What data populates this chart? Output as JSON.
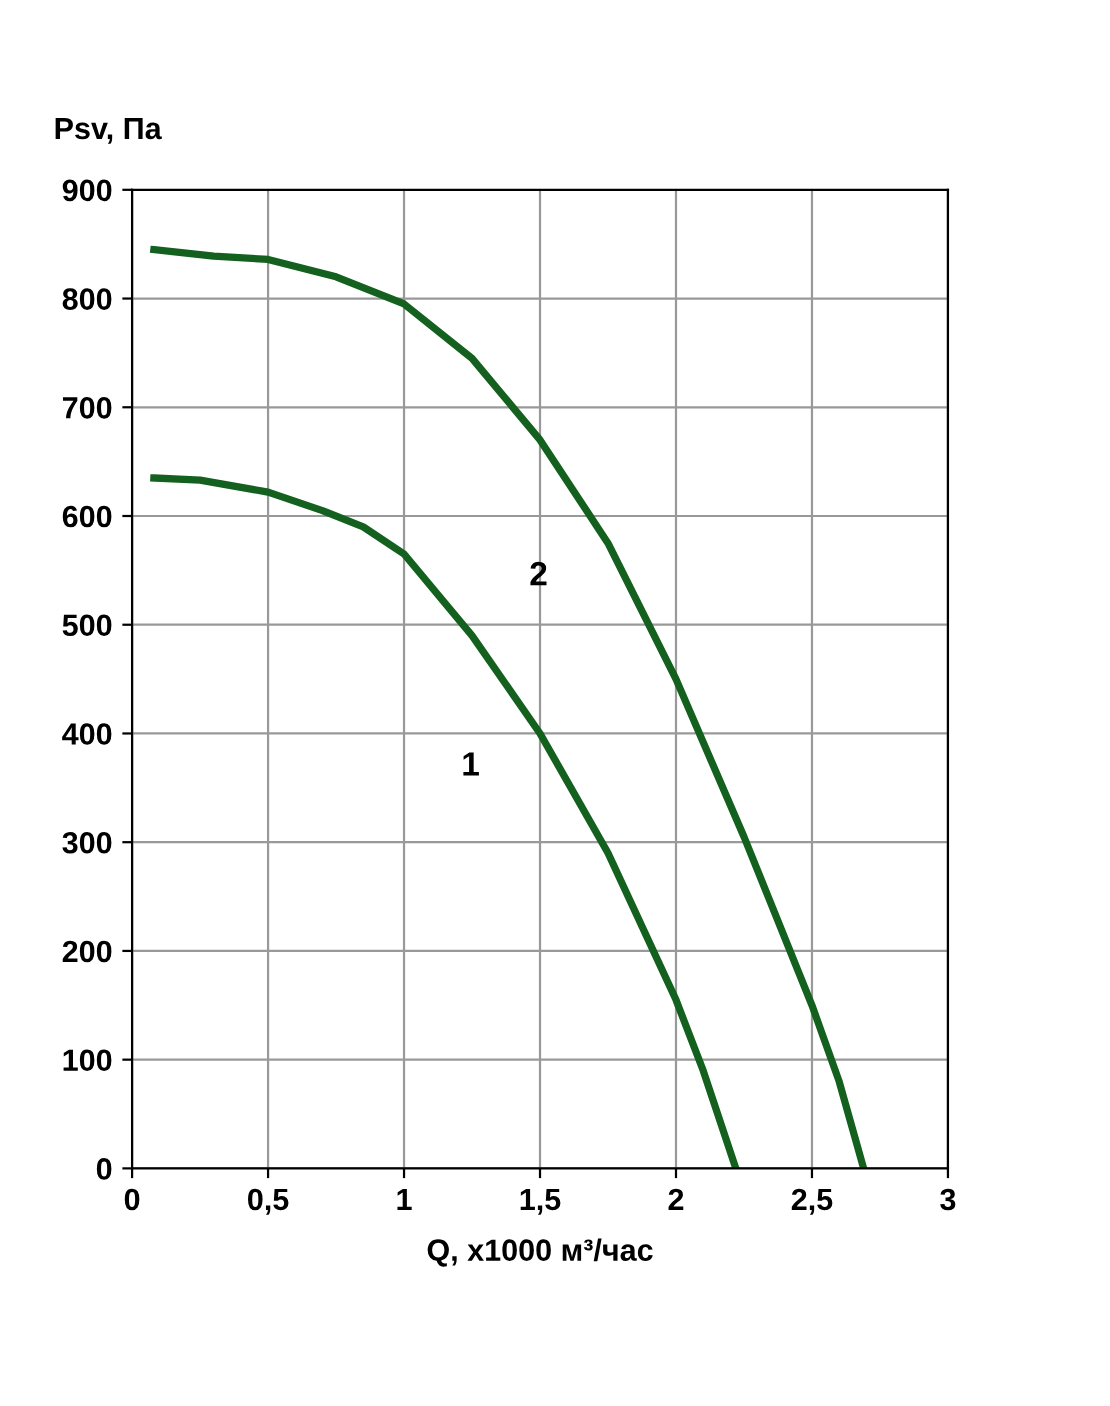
{
  "chart_data": {
    "type": "line",
    "xlabel": "Q, x1000 м³/час",
    "ylabel": "Psv, Па",
    "series": [
      {
        "name": "1",
        "color": "#14601e",
        "x": [
          0.08,
          0.25,
          0.5,
          0.7,
          0.85,
          1.0,
          1.25,
          1.5,
          1.75,
          2.0,
          2.1,
          2.22
        ],
        "values": [
          635,
          633,
          622,
          605,
          590,
          565,
          490,
          400,
          290,
          155,
          90,
          0
        ]
      },
      {
        "name": "2",
        "color": "#14601e",
        "x": [
          0.08,
          0.3,
          0.5,
          0.75,
          1.0,
          1.25,
          1.5,
          1.75,
          2.0,
          2.25,
          2.5,
          2.6,
          2.69
        ],
        "values": [
          845,
          839,
          836,
          820,
          795,
          745,
          670,
          575,
          450,
          305,
          150,
          80,
          0
        ]
      }
    ],
    "xlim": [
      0,
      3
    ],
    "ylim": [
      0,
      900
    ],
    "xticks": [
      0,
      {
        "value": 0.5,
        "label": "0,5"
      },
      1,
      {
        "value": 1.5,
        "label": "1,5"
      },
      2,
      {
        "value": 2.5,
        "label": "2,5"
      },
      3
    ],
    "yticks": [
      0,
      100,
      200,
      300,
      400,
      500,
      600,
      700,
      800,
      900
    ],
    "grid": true,
    "marker": "none",
    "line_style": "solid",
    "legend": false
  }
}
